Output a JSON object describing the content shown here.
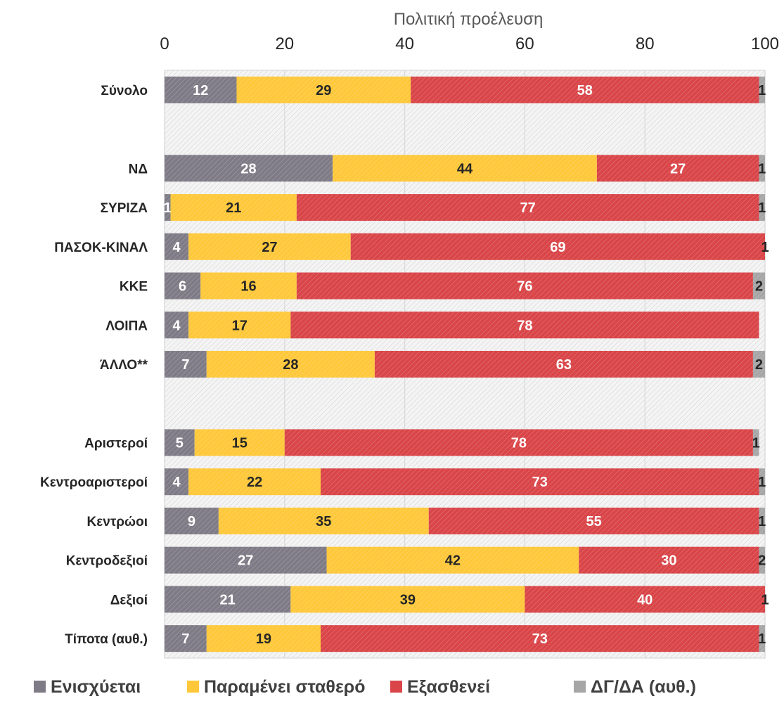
{
  "chart_data": {
    "type": "bar",
    "orientation": "horizontal",
    "stacked": true,
    "xlabel": "Πολιτική προέλευση",
    "xlim": [
      0,
      100
    ],
    "xticks": [
      "0",
      "20",
      "40",
      "60",
      "80",
      "100"
    ],
    "grid": true,
    "legend_position": "bottom",
    "categories": [
      "Σύνολο",
      "",
      "ΝΔ",
      "ΣΥΡΙΖΑ",
      "ΠΑΣΟΚ-ΚΙΝΑΛ",
      "ΚΚΕ",
      "ΛΟΙΠΑ",
      "ΆΛΛΟ**",
      "",
      "Αριστεροί",
      "Κεντροαριστεροί",
      "Κεντρώοι",
      "Κεντροδεξιοί",
      "Δεξιοί",
      "Τίποτα (αυθ.)"
    ],
    "series": [
      {
        "name": "Ενισχύεται",
        "color": "#7f7b86",
        "label_color": "#ffffff",
        "values": [
          12,
          null,
          28,
          1,
          4,
          6,
          4,
          7,
          null,
          5,
          4,
          9,
          27,
          21,
          7
        ]
      },
      {
        "name": "Παραμένει σταθερό",
        "color": "#ffc83a",
        "label_color": "#262626",
        "values": [
          29,
          null,
          44,
          21,
          27,
          16,
          17,
          28,
          null,
          15,
          22,
          35,
          42,
          39,
          19
        ]
      },
      {
        "name": "Εξασθενεί",
        "color": "#d94548",
        "label_color": "#ffffff",
        "values": [
          58,
          null,
          27,
          77,
          69,
          76,
          78,
          63,
          null,
          78,
          73,
          55,
          30,
          40,
          73
        ]
      },
      {
        "name": "ΔΓ/ΔΑ (αυθ.)",
        "color": "#a6a6a6",
        "label_color": "#262626",
        "values": [
          1,
          null,
          1,
          1,
          1,
          2,
          null,
          2,
          null,
          1,
          1,
          1,
          2,
          1,
          1
        ]
      }
    ]
  }
}
